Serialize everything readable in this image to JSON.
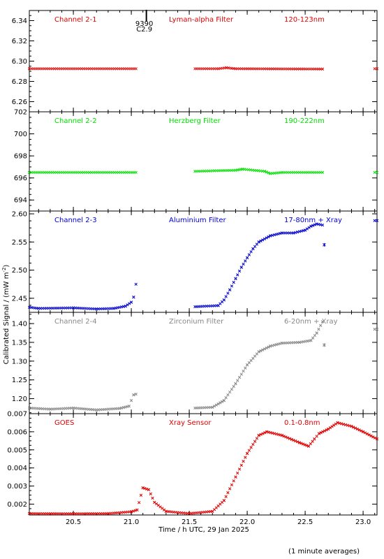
{
  "chart_data": {
    "type": "scatter",
    "xlabel": "Time / h UTC, 29 Jan 2025",
    "ylabel": "Calibrated Signal / (mW m",
    "ylabel_sup": "-2",
    "ylabel_close": ")",
    "footnote": "(1 minute averages)",
    "xlim": [
      20.12,
      23.12
    ],
    "xticks": [
      20.5,
      21.0,
      21.5,
      22.0,
      22.5,
      23.0
    ],
    "xtick_labels": [
      "20.5",
      "21.0",
      "21.5",
      "22.0",
      "22.5",
      "23.0"
    ],
    "marker": {
      "label1": "9390",
      "label2": "C2.9",
      "x": 21.13
    },
    "panels": [
      {
        "labels": [
          "Channel 2-1",
          "Lyman-alpha Filter",
          "120-123nm"
        ],
        "color": "#e00000",
        "ylim": [
          6.25,
          6.35
        ],
        "yticks": [
          6.26,
          6.28,
          6.3,
          6.32,
          6.34
        ],
        "ytick_labels": [
          "6.26",
          "6.28",
          "6.30",
          "6.32",
          "6.34"
        ],
        "segments": [
          [
            [
              20.12,
              6.2925
            ],
            [
              21.04,
              6.2925
            ]
          ],
          [
            [
              21.55,
              6.2925
            ],
            [
              21.75,
              6.2925
            ],
            [
              21.82,
              6.2935
            ],
            [
              21.9,
              6.2925
            ],
            [
              22.65,
              6.2922
            ]
          ],
          [
            [
              23.1,
              6.2925
            ],
            [
              23.12,
              6.2925
            ]
          ]
        ]
      },
      {
        "labels": [
          "Channel 2-2",
          "Herzberg Filter",
          "190-222nm"
        ],
        "color": "#00e000",
        "ylim": [
          693,
          702
        ],
        "yticks": [
          694,
          696,
          698,
          700,
          702
        ],
        "ytick_labels": [
          "694",
          "696",
          "698",
          "700",
          "702"
        ],
        "segments": [
          [
            [
              20.12,
              696.5
            ],
            [
              21.04,
              696.5
            ]
          ],
          [
            [
              21.55,
              696.6
            ],
            [
              21.9,
              696.7
            ],
            [
              21.96,
              696.8
            ],
            [
              22.15,
              696.6
            ],
            [
              22.2,
              696.4
            ],
            [
              22.3,
              696.5
            ],
            [
              22.65,
              696.5
            ]
          ],
          [
            [
              23.1,
              696.5
            ],
            [
              23.12,
              696.5
            ]
          ]
        ]
      },
      {
        "labels": [
          "Channel 2-3",
          "Aluminium Filter",
          "17-80nm + Xray"
        ],
        "color": "#0000d0",
        "ylim": [
          2.425,
          2.605
        ],
        "yticks": [
          2.45,
          2.5,
          2.55,
          2.6
        ],
        "ytick_labels": [
          "2.45",
          "2.50",
          "2.55",
          "2.60"
        ],
        "segments": [
          [
            [
              20.12,
              2.434
            ],
            [
              20.2,
              2.432
            ],
            [
              20.5,
              2.433
            ],
            [
              20.7,
              2.431
            ],
            [
              20.85,
              2.432
            ],
            [
              20.95,
              2.436
            ],
            [
              21.0,
              2.443
            ],
            [
              21.02,
              2.452
            ],
            [
              21.04,
              2.475
            ]
          ],
          [
            [
              21.55,
              2.435
            ],
            [
              21.75,
              2.437
            ],
            [
              21.8,
              2.447
            ],
            [
              21.85,
              2.465
            ],
            [
              21.9,
              2.485
            ],
            [
              21.95,
              2.505
            ],
            [
              22.0,
              2.522
            ],
            [
              22.05,
              2.538
            ],
            [
              22.1,
              2.55
            ],
            [
              22.2,
              2.561
            ],
            [
              22.3,
              2.566
            ],
            [
              22.4,
              2.566
            ],
            [
              22.5,
              2.571
            ],
            [
              22.55,
              2.578
            ],
            [
              22.6,
              2.582
            ],
            [
              22.65,
              2.58
            ]
          ],
          [
            [
              22.665,
              2.545
            ]
          ],
          [
            [
              23.1,
              2.588
            ],
            [
              23.12,
              2.588
            ]
          ]
        ]
      },
      {
        "labels": [
          "Channel 2-4",
          "Zirconium Filter",
          "6-20nm + Xray"
        ],
        "color": "#888888",
        "ylim": [
          1.16,
          1.43
        ],
        "yticks": [
          1.2,
          1.25,
          1.3,
          1.35,
          1.4
        ],
        "ytick_labels": [
          "1.20",
          "1.25",
          "1.30",
          "1.35",
          "1.40"
        ],
        "segments": [
          [
            [
              20.12,
              1.175
            ],
            [
              20.3,
              1.172
            ],
            [
              20.5,
              1.175
            ],
            [
              20.7,
              1.17
            ],
            [
              20.9,
              1.174
            ],
            [
              20.98,
              1.18
            ],
            [
              21.02,
              1.21
            ],
            [
              21.04,
              1.212
            ]
          ],
          [
            [
              21.55,
              1.175
            ],
            [
              21.7,
              1.177
            ],
            [
              21.8,
              1.195
            ],
            [
              21.9,
              1.24
            ],
            [
              22.0,
              1.29
            ],
            [
              22.1,
              1.325
            ],
            [
              22.2,
              1.34
            ],
            [
              22.3,
              1.348
            ],
            [
              22.45,
              1.35
            ],
            [
              22.55,
              1.355
            ],
            [
              22.6,
              1.375
            ],
            [
              22.65,
              1.405
            ]
          ],
          [
            [
              22.665,
              1.343
            ]
          ],
          [
            [
              23.1,
              1.385
            ],
            [
              23.12,
              1.385
            ]
          ]
        ]
      },
      {
        "labels": [
          "GOES",
          "Xray Sensor",
          "0.1-0.8nm"
        ],
        "color": "#e00000",
        "ylim": [
          0.0014,
          0.007
        ],
        "yticks": [
          0.002,
          0.003,
          0.004,
          0.005,
          0.006,
          0.007
        ],
        "ytick_labels": [
          "0.002",
          "0.003",
          "0.004",
          "0.005",
          "0.006",
          "0.007"
        ],
        "segments": [
          [
            [
              20.12,
              0.00148
            ],
            [
              20.5,
              0.00147
            ],
            [
              20.8,
              0.00148
            ],
            [
              21.0,
              0.00158
            ],
            [
              21.05,
              0.00168
            ],
            [
              21.1,
              0.0029
            ],
            [
              21.15,
              0.0028
            ],
            [
              21.2,
              0.0021
            ],
            [
              21.3,
              0.0016
            ],
            [
              21.5,
              0.00148
            ],
            [
              21.7,
              0.0016
            ],
            [
              21.8,
              0.0022
            ],
            [
              21.9,
              0.0035
            ],
            [
              22.0,
              0.0048
            ],
            [
              22.1,
              0.0058
            ],
            [
              22.17,
              0.006
            ],
            [
              22.3,
              0.0058
            ],
            [
              22.45,
              0.0054
            ],
            [
              22.53,
              0.0052
            ],
            [
              22.58,
              0.0056
            ],
            [
              22.62,
              0.0059
            ],
            [
              22.7,
              0.00615
            ],
            [
              22.78,
              0.0065
            ],
            [
              22.9,
              0.0063
            ],
            [
              23.0,
              0.006
            ],
            [
              23.12,
              0.0056
            ]
          ]
        ]
      }
    ]
  }
}
